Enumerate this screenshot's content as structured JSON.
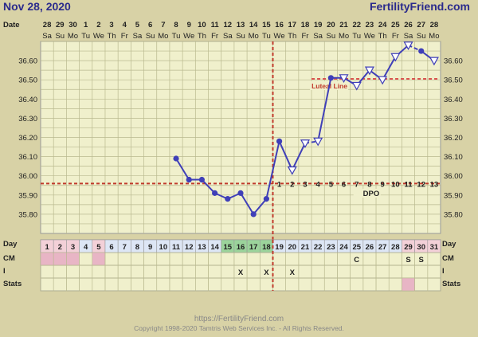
{
  "header": {
    "date_title": "Nov 28, 2020",
    "site": "FertilityFriend.com"
  },
  "footer": {
    "url": "https://FertilityFriend.com",
    "copyright": "Copyright 1998-2020 Tamtris Web Services Inc. - All Rights Reserved."
  },
  "rows": {
    "date": "Date",
    "day": "Day",
    "cm": "CM",
    "i": "I",
    "stats": "Stats"
  },
  "chart_data": {
    "type": "line",
    "title": "",
    "ylim": [
      35.7,
      36.7
    ],
    "yticks": [
      "36.60",
      "36.50",
      "36.40",
      "36.30",
      "36.20",
      "36.10",
      "36.00",
      "35.90",
      "35.80"
    ],
    "dates": [
      "28",
      "29",
      "30",
      "1",
      "2",
      "3",
      "4",
      "5",
      "6",
      "7",
      "8",
      "9",
      "10",
      "11",
      "12",
      "13",
      "14",
      "15",
      "16",
      "17",
      "18",
      "19",
      "20",
      "21",
      "22",
      "23",
      "24",
      "25",
      "26",
      "27",
      "28"
    ],
    "weekdays": [
      "Sa",
      "Su",
      "Mo",
      "Tu",
      "We",
      "Th",
      "Fr",
      "Sa",
      "Su",
      "Mo",
      "Tu",
      "We",
      "Th",
      "Fr",
      "Sa",
      "Su",
      "Mo",
      "Tu",
      "We",
      "Th",
      "Fr",
      "Sa",
      "Su",
      "Mo",
      "Tu",
      "We",
      "Th",
      "Fr",
      "Sa",
      "Su",
      "Mo"
    ],
    "days": [
      "1",
      "2",
      "3",
      "4",
      "5",
      "6",
      "7",
      "8",
      "9",
      "10",
      "11",
      "12",
      "13",
      "14",
      "15",
      "16",
      "17",
      "18",
      "19",
      "20",
      "21",
      "22",
      "23",
      "24",
      "25",
      "26",
      "27",
      "28",
      "29",
      "30",
      "31"
    ],
    "temps": [
      null,
      null,
      null,
      null,
      null,
      null,
      null,
      null,
      null,
      null,
      36.09,
      35.98,
      35.98,
      35.91,
      35.88,
      35.91,
      35.8,
      35.88,
      36.18,
      36.03,
      36.17,
      36.18,
      36.51,
      36.51,
      36.47,
      36.55,
      36.5,
      36.62,
      36.68,
      36.65,
      36.6
    ],
    "markers": [
      "",
      "",
      "",
      "",
      "",
      "",
      "",
      "",
      "",
      "",
      "o",
      "o",
      "o",
      "o",
      "o",
      "o",
      "o",
      "o",
      "o",
      "v",
      "v",
      "v",
      "o",
      "v",
      "v",
      "v",
      "v",
      "v",
      "v",
      "",
      "v"
    ],
    "dashed_to": [
      22,
      30
    ],
    "coverline": {
      "value": 35.96,
      "label": ""
    },
    "ovulation_day": 18,
    "luteal_line": {
      "value": 36.505,
      "label": "Luteal Line",
      "from_day": 22
    },
    "dpo_label": "DPO",
    "dpo_numbers": [
      "1",
      "2",
      "3",
      "4",
      "5",
      "6",
      "7",
      "8",
      "9",
      "10",
      "11",
      "12",
      "13"
    ],
    "dpo_start_day": 19,
    "fertile_days": [
      15,
      16,
      17,
      18
    ],
    "pink_days": [
      1,
      2,
      3,
      5,
      29,
      30,
      31
    ],
    "cm": {
      "25": "C",
      "29": "S",
      "30": "S"
    },
    "cm_pink_days": [
      1,
      2,
      3,
      5
    ],
    "intercourse": {
      "16": "X",
      "18": "X",
      "20": "X"
    },
    "stats_pink_days": [
      29
    ]
  }
}
